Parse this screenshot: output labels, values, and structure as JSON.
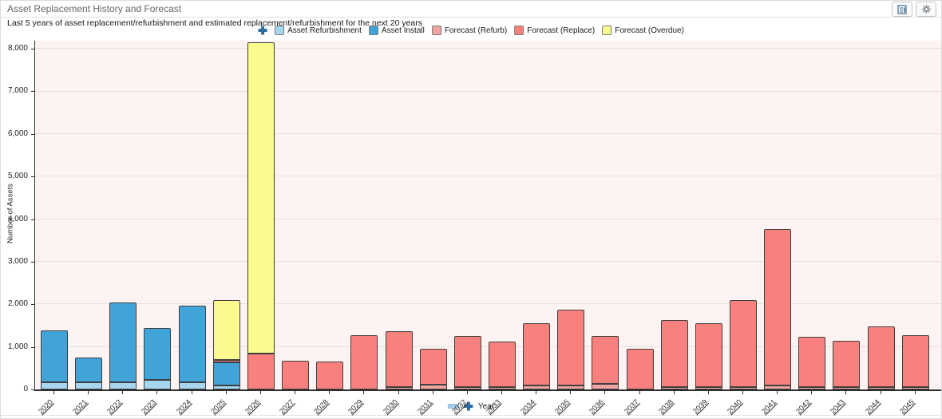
{
  "header": {
    "title": "Asset Replacement History and Forecast",
    "buttons": [
      {
        "name": "report-view",
        "icon": "report-icon"
      },
      {
        "name": "settings",
        "icon": "gear-icon"
      }
    ]
  },
  "subtitle": "Last 5 years of asset replacement/refurbishment and estimated replacement/refurbishment for the next 20 years",
  "colors": {
    "plot_bg": "#fdf3f2",
    "gridline": "#e9dedd",
    "axis": "#2d2d2d",
    "bar_border": "#3f3f3f",
    "year_link": "#2b2b2b",
    "plus_icon": "#2e6da4",
    "header_icon": "#547a9c"
  },
  "chart_data": {
    "type": "bar",
    "stacked": true,
    "title": "Asset Replacement History and Forecast",
    "subtitle": "Last 5 years of asset replacement/refurbishment and estimated replacement/refurbishment for the next 20 years",
    "xlabel": "Year",
    "ylabel": "Number of Assets",
    "ylim": [
      0,
      8190
    ],
    "grid": true,
    "legend_position": "top",
    "ytick_labels": [
      "0",
      "1,000",
      "2,000",
      "3,000",
      "4,000",
      "5,000",
      "6,000",
      "7,000",
      "8,000"
    ],
    "ytick_values": [
      0,
      1000,
      2000,
      3000,
      4000,
      5000,
      6000,
      7000,
      8000
    ],
    "categories": [
      "2020",
      "2021",
      "2022",
      "2023",
      "2024",
      "2025",
      "2026",
      "2027",
      "2028",
      "2029",
      "2030",
      "2031",
      "2032",
      "2033",
      "2034",
      "2035",
      "2036",
      "2037",
      "2038",
      "2039",
      "2040",
      "2041",
      "2042",
      "2043",
      "2044",
      "2045"
    ],
    "series": [
      {
        "name": "Asset Refurbishment",
        "slug": "asset-refurbishment",
        "color": "#a7d6f1",
        "values": [
          170,
          160,
          170,
          220,
          170,
          90,
          0,
          0,
          0,
          0,
          0,
          0,
          0,
          0,
          0,
          0,
          0,
          0,
          0,
          0,
          0,
          0,
          0,
          0,
          0,
          0
        ]
      },
      {
        "name": "Asset Install",
        "slug": "asset-install",
        "color": "#41a4d9",
        "values": [
          1210,
          590,
          1880,
          1220,
          1800,
          550,
          0,
          0,
          0,
          0,
          0,
          0,
          0,
          0,
          0,
          0,
          0,
          0,
          0,
          0,
          0,
          0,
          0,
          0,
          0,
          0
        ]
      },
      {
        "name": "Forecast (Refurb)",
        "slug": "forecast-refurb",
        "color": "#f2a4a1",
        "values": [
          0,
          0,
          0,
          0,
          0,
          0,
          0,
          0,
          0,
          0,
          60,
          105,
          50,
          60,
          95,
          95,
          135,
          0,
          45,
          45,
          60,
          90,
          40,
          40,
          50,
          40
        ]
      },
      {
        "name": "Forecast (Replace)",
        "slug": "forecast-replace",
        "color": "#f9817d",
        "values": [
          0,
          0,
          0,
          0,
          0,
          40,
          850,
          680,
          650,
          1270,
          1300,
          855,
          1200,
          1070,
          1455,
          1785,
          1125,
          950,
          1575,
          1495,
          2040,
          3680,
          1190,
          1090,
          1420,
          1220
        ]
      },
      {
        "name": "Forecast (Overdue)",
        "slug": "forecast-overdue",
        "color": "#fbfa8e",
        "values": [
          0,
          0,
          0,
          0,
          0,
          1400,
          7300,
          0,
          0,
          0,
          0,
          0,
          0,
          0,
          0,
          0,
          0,
          0,
          0,
          0,
          0,
          0,
          0,
          0,
          0,
          0
        ]
      }
    ]
  },
  "footer": {
    "xlabel": "Year"
  }
}
